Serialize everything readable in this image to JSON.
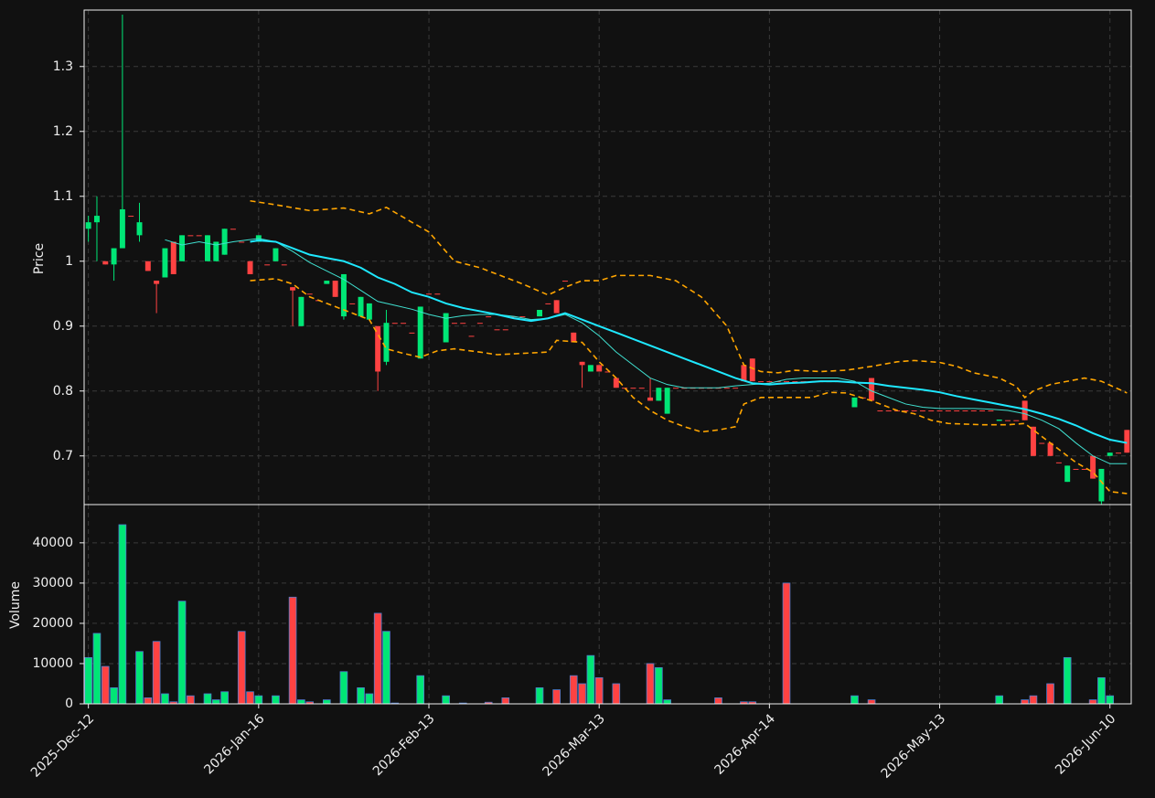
{
  "chart_data": {
    "type": "candlestick",
    "price_label": "Price",
    "volume_label": "Volume",
    "up_color": "#00e676",
    "down_color": "#ff4242",
    "xlim": [
      -0.5,
      122.5
    ],
    "xticks": [
      {
        "value": 0,
        "label": "2025-Dec-12"
      },
      {
        "value": 20,
        "label": "2026-Jan-16"
      },
      {
        "value": 40,
        "label": "2026-Feb-13"
      },
      {
        "value": 60,
        "label": "2026-Mar-13"
      },
      {
        "value": 80,
        "label": "2026-Apr-14"
      },
      {
        "value": 100,
        "label": "2026-May-13"
      },
      {
        "value": 120,
        "label": "2026-Jun-10"
      }
    ],
    "ylim": [
      0.625,
      1.387
    ],
    "yticks": [
      0.7,
      0.8,
      0.9,
      1.0,
      1.1,
      1.2,
      1.3
    ],
    "y2lim": [
      0,
      49500
    ],
    "y2ticks": [
      0,
      10000,
      20000,
      30000,
      40000
    ],
    "grid": true,
    "open": [
      1.05,
      1.06,
      1.0,
      0.995,
      1.02,
      1.07,
      1.04,
      1.0,
      0.97,
      0.975,
      1.03,
      1.0,
      1.04,
      1.04,
      1.0,
      1.0,
      1.01,
      1.05,
      1.03,
      1.0,
      1.03,
      0.995,
      1.0,
      0.995,
      0.96,
      0.9,
      0.95,
      0.94,
      0.965,
      0.97,
      0.915,
      0.935,
      0.915,
      0.91,
      0.9,
      0.845,
      0.905,
      0.905,
      0.89,
      0.85,
      0.95,
      0.95,
      0.875,
      0.905,
      0.905,
      0.885,
      0.905,
      0.915,
      0.895,
      0.895,
      0.915,
      0.915,
      0.91,
      0.915,
      0.935,
      0.94,
      0.97,
      0.89,
      0.845,
      0.83,
      0.84,
      0.83,
      0.82,
      0.805,
      0.805,
      0.805,
      0.79,
      0.785,
      0.765,
      0.805,
      0.805,
      0.805,
      0.805,
      0.805,
      0.805,
      0.805,
      0.805,
      0.84,
      0.85,
      0.815,
      0.815,
      0.815,
      0.815,
      0.815,
      0.815,
      0.815,
      0.815,
      0.815,
      0.815,
      0.815,
      0.775,
      0.79,
      0.82,
      0.77,
      0.77,
      0.77,
      0.77,
      0.77,
      0.77,
      0.77,
      0.77,
      0.77,
      0.77,
      0.77,
      0.77,
      0.77,
      0.77,
      0.754,
      0.755,
      0.755,
      0.785,
      0.745,
      0.72,
      0.72,
      0.69,
      0.66,
      0.68,
      0.68,
      0.7,
      0.63,
      0.7,
      0.705,
      0.74
    ],
    "high": [
      1.07,
      1.1,
      1.0,
      1.02,
      1.38,
      1.07,
      1.09,
      1.0,
      0.97,
      1.02,
      1.03,
      1.04,
      1.04,
      1.04,
      1.04,
      1.03,
      1.05,
      1.05,
      1.03,
      1.0,
      1.04,
      0.995,
      1.02,
      0.995,
      0.96,
      0.945,
      0.95,
      0.94,
      0.97,
      0.97,
      0.98,
      0.935,
      0.945,
      0.935,
      0.9,
      0.925,
      0.905,
      0.905,
      0.89,
      0.93,
      0.95,
      0.95,
      0.92,
      0.905,
      0.905,
      0.885,
      0.905,
      0.915,
      0.895,
      0.895,
      0.915,
      0.915,
      0.91,
      0.925,
      0.935,
      0.94,
      0.97,
      0.89,
      0.845,
      0.84,
      0.84,
      0.83,
      0.82,
      0.805,
      0.805,
      0.805,
      0.82,
      0.805,
      0.805,
      0.805,
      0.805,
      0.805,
      0.805,
      0.805,
      0.805,
      0.805,
      0.805,
      0.84,
      0.85,
      0.815,
      0.815,
      0.815,
      0.815,
      0.815,
      0.815,
      0.815,
      0.815,
      0.815,
      0.815,
      0.815,
      0.79,
      0.79,
      0.82,
      0.77,
      0.77,
      0.77,
      0.77,
      0.77,
      0.77,
      0.77,
      0.77,
      0.77,
      0.77,
      0.77,
      0.77,
      0.77,
      0.77,
      0.756,
      0.755,
      0.755,
      0.785,
      0.745,
      0.72,
      0.72,
      0.69,
      0.685,
      0.68,
      0.68,
      0.7,
      0.68,
      0.705,
      0.705,
      0.74
    ],
    "low": [
      1.03,
      1.0,
      0.995,
      0.97,
      1.02,
      1.07,
      1.03,
      0.985,
      0.92,
      0.975,
      0.98,
      1.0,
      1.04,
      1.04,
      1.0,
      1.0,
      1.01,
      1.05,
      1.03,
      0.98,
      1.03,
      0.995,
      1.0,
      0.995,
      0.9,
      0.9,
      0.95,
      0.94,
      0.965,
      0.945,
      0.91,
      0.935,
      0.915,
      0.91,
      0.8,
      0.84,
      0.905,
      0.905,
      0.89,
      0.85,
      0.95,
      0.95,
      0.875,
      0.905,
      0.905,
      0.885,
      0.905,
      0.915,
      0.895,
      0.895,
      0.915,
      0.915,
      0.91,
      0.915,
      0.935,
      0.92,
      0.97,
      0.875,
      0.805,
      0.83,
      0.83,
      0.83,
      0.805,
      0.805,
      0.805,
      0.805,
      0.785,
      0.785,
      0.765,
      0.805,
      0.805,
      0.805,
      0.805,
      0.805,
      0.805,
      0.805,
      0.805,
      0.815,
      0.815,
      0.815,
      0.815,
      0.815,
      0.815,
      0.815,
      0.815,
      0.815,
      0.815,
      0.815,
      0.815,
      0.815,
      0.775,
      0.79,
      0.785,
      0.77,
      0.77,
      0.77,
      0.77,
      0.77,
      0.77,
      0.77,
      0.77,
      0.77,
      0.77,
      0.77,
      0.77,
      0.77,
      0.77,
      0.754,
      0.755,
      0.755,
      0.755,
      0.7,
      0.72,
      0.7,
      0.69,
      0.66,
      0.68,
      0.68,
      0.665,
      0.625,
      0.7,
      0.705,
      0.705
    ],
    "close": [
      1.06,
      1.07,
      0.995,
      1.02,
      1.08,
      1.07,
      1.06,
      0.985,
      0.965,
      1.02,
      0.98,
      1.04,
      1.04,
      1.04,
      1.04,
      1.03,
      1.05,
      1.05,
      1.03,
      0.98,
      1.04,
      0.995,
      1.02,
      0.995,
      0.955,
      0.945,
      0.95,
      0.94,
      0.97,
      0.945,
      0.98,
      0.935,
      0.945,
      0.935,
      0.83,
      0.905,
      0.905,
      0.905,
      0.89,
      0.93,
      0.95,
      0.95,
      0.92,
      0.905,
      0.905,
      0.885,
      0.905,
      0.915,
      0.895,
      0.895,
      0.915,
      0.915,
      0.91,
      0.925,
      0.935,
      0.92,
      0.97,
      0.875,
      0.84,
      0.84,
      0.83,
      0.83,
      0.805,
      0.805,
      0.805,
      0.805,
      0.785,
      0.805,
      0.805,
      0.805,
      0.805,
      0.805,
      0.805,
      0.805,
      0.805,
      0.805,
      0.805,
      0.815,
      0.815,
      0.815,
      0.815,
      0.815,
      0.815,
      0.815,
      0.815,
      0.815,
      0.815,
      0.815,
      0.815,
      0.815,
      0.79,
      0.79,
      0.785,
      0.77,
      0.77,
      0.77,
      0.77,
      0.77,
      0.77,
      0.77,
      0.77,
      0.77,
      0.77,
      0.77,
      0.77,
      0.77,
      0.77,
      0.756,
      0.755,
      0.755,
      0.755,
      0.7,
      0.72,
      0.7,
      0.69,
      0.685,
      0.68,
      0.68,
      0.665,
      0.68,
      0.705,
      0.705,
      0.705
    ],
    "volume": [
      11500,
      17500,
      9300,
      4000,
      44500,
      0,
      13000,
      1500,
      15500,
      2500,
      500,
      25500,
      2000,
      0,
      2500,
      1000,
      3000,
      0,
      18000,
      3000,
      2000,
      0,
      2000,
      0,
      26500,
      1000,
      500,
      0,
      1000,
      0,
      8000,
      0,
      4000,
      2500,
      22500,
      18000,
      200,
      0,
      0,
      7000,
      0,
      0,
      2000,
      0,
      200,
      0,
      0,
      400,
      0,
      1500,
      0,
      0,
      0,
      4000,
      0,
      3500,
      0,
      7000,
      5000,
      12000,
      6500,
      0,
      5000,
      0,
      0,
      0,
      10000,
      9000,
      1000,
      0,
      0,
      0,
      0,
      0,
      1500,
      0,
      0,
      500,
      500,
      0,
      0,
      0,
      30000,
      0,
      0,
      0,
      0,
      0,
      0,
      0,
      2000,
      0,
      1000,
      0,
      0,
      0,
      0,
      0,
      0,
      0,
      0,
      0,
      0,
      0,
      0,
      0,
      0,
      2000,
      0,
      0,
      1000,
      2000,
      0,
      5000,
      0,
      11500,
      0,
      0,
      1000,
      6500,
      2000,
      0,
      0
    ],
    "overlays": [
      {
        "color": "#40e0d0",
        "width": 1,
        "dashed": false,
        "x": [
          9,
          11,
          13,
          15,
          17,
          20,
          22,
          24,
          26,
          28,
          30,
          32,
          34,
          36,
          38,
          40,
          42,
          44,
          46,
          48,
          50,
          52,
          54,
          56,
          58,
          60,
          62,
          64,
          66,
          68,
          70,
          72,
          74,
          76,
          78,
          80,
          82,
          84,
          86,
          88,
          90,
          92,
          94,
          96,
          98,
          100,
          102,
          104,
          106,
          108,
          110,
          112,
          114,
          116,
          118,
          120,
          122
        ],
        "values": [
          1.033,
          1.025,
          1.03,
          1.025,
          1.03,
          1.035,
          1.03,
          1.015,
          0.998,
          0.985,
          0.972,
          0.955,
          0.938,
          0.932,
          0.926,
          0.918,
          0.912,
          0.916,
          0.918,
          0.918,
          0.915,
          0.91,
          0.912,
          0.918,
          0.905,
          0.885,
          0.86,
          0.84,
          0.82,
          0.81,
          0.805,
          0.805,
          0.805,
          0.808,
          0.81,
          0.812,
          0.818,
          0.82,
          0.82,
          0.82,
          0.815,
          0.8,
          0.79,
          0.78,
          0.775,
          0.773,
          0.773,
          0.773,
          0.772,
          0.77,
          0.765,
          0.755,
          0.742,
          0.72,
          0.7,
          0.688,
          0.688
        ]
      },
      {
        "color": "#1ee8ff",
        "width": 2,
        "dashed": false,
        "x": [
          19,
          20,
          22,
          24,
          26,
          28,
          30,
          32,
          34,
          36,
          38,
          40,
          42,
          44,
          46,
          48,
          50,
          52,
          54,
          56,
          58,
          60,
          62,
          64,
          66,
          68,
          70,
          72,
          74,
          76,
          78,
          80,
          82,
          84,
          86,
          88,
          90,
          92,
          94,
          96,
          98,
          100,
          102,
          104,
          106,
          108,
          110,
          112,
          114,
          116,
          118,
          120,
          122
        ],
        "values": [
          1.03,
          1.032,
          1.03,
          1.02,
          1.01,
          1.005,
          1.0,
          0.99,
          0.975,
          0.965,
          0.952,
          0.945,
          0.935,
          0.928,
          0.923,
          0.918,
          0.912,
          0.908,
          0.912,
          0.92,
          0.91,
          0.9,
          0.89,
          0.88,
          0.87,
          0.86,
          0.85,
          0.84,
          0.83,
          0.82,
          0.812,
          0.81,
          0.812,
          0.813,
          0.815,
          0.815,
          0.813,
          0.812,
          0.808,
          0.805,
          0.802,
          0.798,
          0.792,
          0.787,
          0.782,
          0.777,
          0.772,
          0.765,
          0.757,
          0.747,
          0.735,
          0.725,
          0.72
        ]
      },
      {
        "color": "#ffa500",
        "width": 1.6,
        "dashed": true,
        "x": [
          19,
          22,
          26,
          30,
          33,
          35,
          38,
          40,
          43,
          46,
          49,
          51,
          54,
          56,
          58,
          60,
          62,
          66,
          69,
          72,
          75,
          77,
          79,
          81,
          83,
          86,
          89,
          92,
          95,
          97,
          100,
          102,
          104,
          107,
          109,
          110,
          111,
          113,
          115,
          117,
          119,
          122
        ],
        "values": [
          1.093,
          1.087,
          1.078,
          1.082,
          1.073,
          1.083,
          1.06,
          1.045,
          1.0,
          0.99,
          0.975,
          0.965,
          0.948,
          0.96,
          0.97,
          0.97,
          0.978,
          0.978,
          0.97,
          0.945,
          0.9,
          0.84,
          0.83,
          0.828,
          0.832,
          0.83,
          0.832,
          0.838,
          0.845,
          0.847,
          0.844,
          0.838,
          0.828,
          0.82,
          0.807,
          0.79,
          0.8,
          0.81,
          0.815,
          0.82,
          0.815,
          0.797
        ]
      },
      {
        "color": "#ffa500",
        "width": 1.6,
        "dashed": true,
        "x": [
          19,
          22,
          24,
          26,
          28,
          30,
          33,
          35,
          37,
          39,
          41,
          43,
          46,
          48,
          51,
          54,
          55,
          58,
          60,
          62,
          64,
          66,
          68,
          70,
          72,
          74,
          76,
          77,
          79,
          81,
          85,
          87,
          89,
          92,
          95,
          97,
          99,
          101,
          105,
          108,
          110,
          112,
          114,
          116,
          118,
          120,
          122
        ],
        "values": [
          0.97,
          0.973,
          0.965,
          0.945,
          0.935,
          0.925,
          0.91,
          0.865,
          0.858,
          0.852,
          0.862,
          0.865,
          0.86,
          0.856,
          0.858,
          0.86,
          0.878,
          0.875,
          0.845,
          0.82,
          0.79,
          0.77,
          0.755,
          0.745,
          0.737,
          0.74,
          0.745,
          0.78,
          0.79,
          0.79,
          0.79,
          0.798,
          0.797,
          0.785,
          0.77,
          0.765,
          0.755,
          0.75,
          0.748,
          0.748,
          0.75,
          0.73,
          0.71,
          0.69,
          0.675,
          0.645,
          0.642
        ]
      }
    ]
  }
}
